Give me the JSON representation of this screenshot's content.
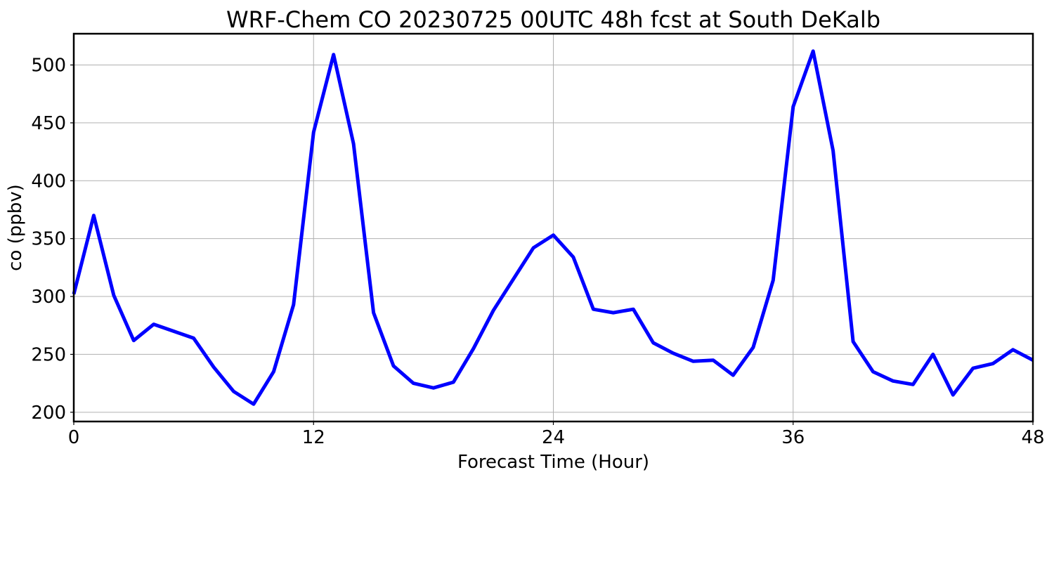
{
  "chart_data": {
    "type": "line",
    "title": "WRF-Chem CO  20230725 00UTC 48h fcst at South DeKalb",
    "xlabel": "Forecast Time (Hour)",
    "ylabel": "co  (ppbv)",
    "xlim": [
      0,
      48
    ],
    "ylim": [
      192,
      527
    ],
    "xticks": [
      0,
      12,
      24,
      36,
      48
    ],
    "yticks": [
      200,
      250,
      300,
      350,
      400,
      450,
      500
    ],
    "grid": true,
    "colors": {
      "line": "#0000ff"
    },
    "series": [
      {
        "x": [
          0,
          1,
          2,
          3,
          4,
          5,
          6,
          7,
          8,
          9,
          10,
          11,
          12,
          13,
          14,
          15,
          16,
          17,
          18,
          19,
          20,
          21,
          22,
          23,
          24,
          25,
          26,
          27,
          28,
          29,
          30,
          31,
          32,
          33,
          34,
          35,
          36,
          37,
          38,
          39,
          40,
          41,
          42,
          43,
          44,
          45,
          46,
          47,
          48
        ],
        "values": [
          302,
          370,
          301,
          262,
          276,
          270,
          264,
          239,
          218,
          207,
          235,
          293,
          442,
          509,
          432,
          286,
          240,
          225,
          221,
          226,
          255,
          288,
          315,
          342,
          353,
          334,
          289,
          286,
          289,
          260,
          251,
          244,
          245,
          232,
          256,
          314,
          464,
          512,
          426,
          261,
          235,
          227,
          224,
          250,
          215,
          238,
          242,
          254,
          245
        ]
      }
    ]
  }
}
